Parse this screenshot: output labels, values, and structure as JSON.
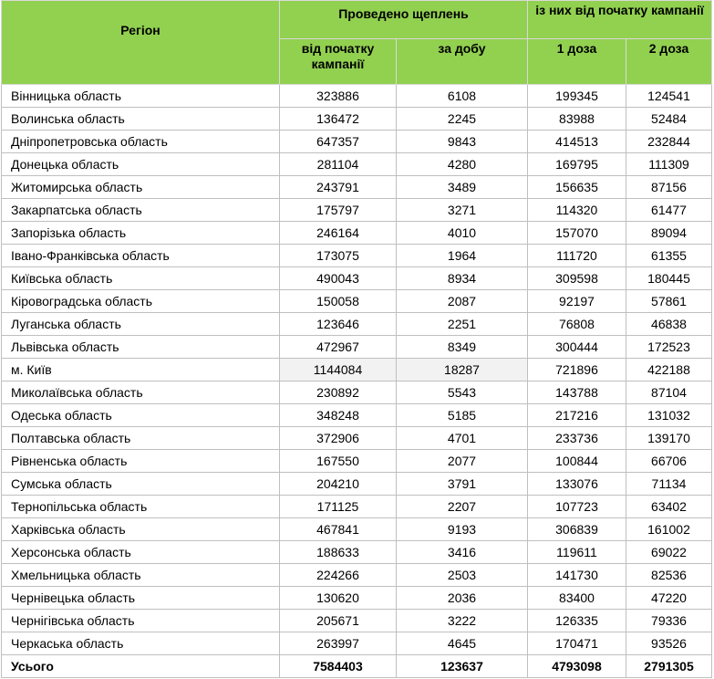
{
  "header": {
    "region": "Регіон",
    "vaccinated": "Проведено щеплень",
    "of_them": "із них від початку кампанії",
    "since_start": "від початку кампанії",
    "per_day": "за добу",
    "dose1": "1 доза",
    "dose2": "2 доза"
  },
  "table": {
    "rows": [
      [
        "Вінницька область",
        323886,
        6108,
        199345,
        124541
      ],
      [
        "Волинська область",
        136472,
        2245,
        83988,
        52484
      ],
      [
        "Дніпропетровська область",
        647357,
        9843,
        414513,
        232844
      ],
      [
        "Донецька область",
        281104,
        4280,
        169795,
        111309
      ],
      [
        "Житомирська область",
        243791,
        3489,
        156635,
        87156
      ],
      [
        "Закарпатська область",
        175797,
        3271,
        114320,
        61477
      ],
      [
        "Запорізька область",
        246164,
        4010,
        157070,
        89094
      ],
      [
        "Івано-Франківська область",
        173075,
        1964,
        111720,
        61355
      ],
      [
        "Київська область",
        490043,
        8934,
        309598,
        180445
      ],
      [
        "Кіровоградська область",
        150058,
        2087,
        92197,
        57861
      ],
      [
        "Луганська область",
        123646,
        2251,
        76808,
        46838
      ],
      [
        "Львівська область",
        472967,
        8349,
        300444,
        172523
      ],
      [
        "м. Київ",
        1144084,
        18287,
        721896,
        422188
      ],
      [
        "Миколаївська область",
        230892,
        5543,
        143788,
        87104
      ],
      [
        "Одеська область",
        348248,
        5185,
        217216,
        131032
      ],
      [
        "Полтавська область",
        372906,
        4701,
        233736,
        139170
      ],
      [
        "Рівненська область",
        167550,
        2077,
        100844,
        66706
      ],
      [
        "Сумська область",
        204210,
        3791,
        133076,
        71134
      ],
      [
        "Тернопільська область",
        171125,
        2207,
        107723,
        63402
      ],
      [
        "Харківська область",
        467841,
        9193,
        306839,
        161002
      ],
      [
        "Херсонська область",
        188633,
        3416,
        119611,
        69022
      ],
      [
        "Хмельницька область",
        224266,
        2503,
        141730,
        82536
      ],
      [
        "Чернівецька область",
        130620,
        2036,
        83400,
        47220
      ],
      [
        "Чернігівська область",
        205671,
        3222,
        126335,
        79336
      ],
      [
        "Черкаська область",
        263997,
        4645,
        170471,
        93526
      ]
    ],
    "total": [
      "Усього",
      7584403,
      123637,
      4793098,
      2791305
    ]
  }
}
